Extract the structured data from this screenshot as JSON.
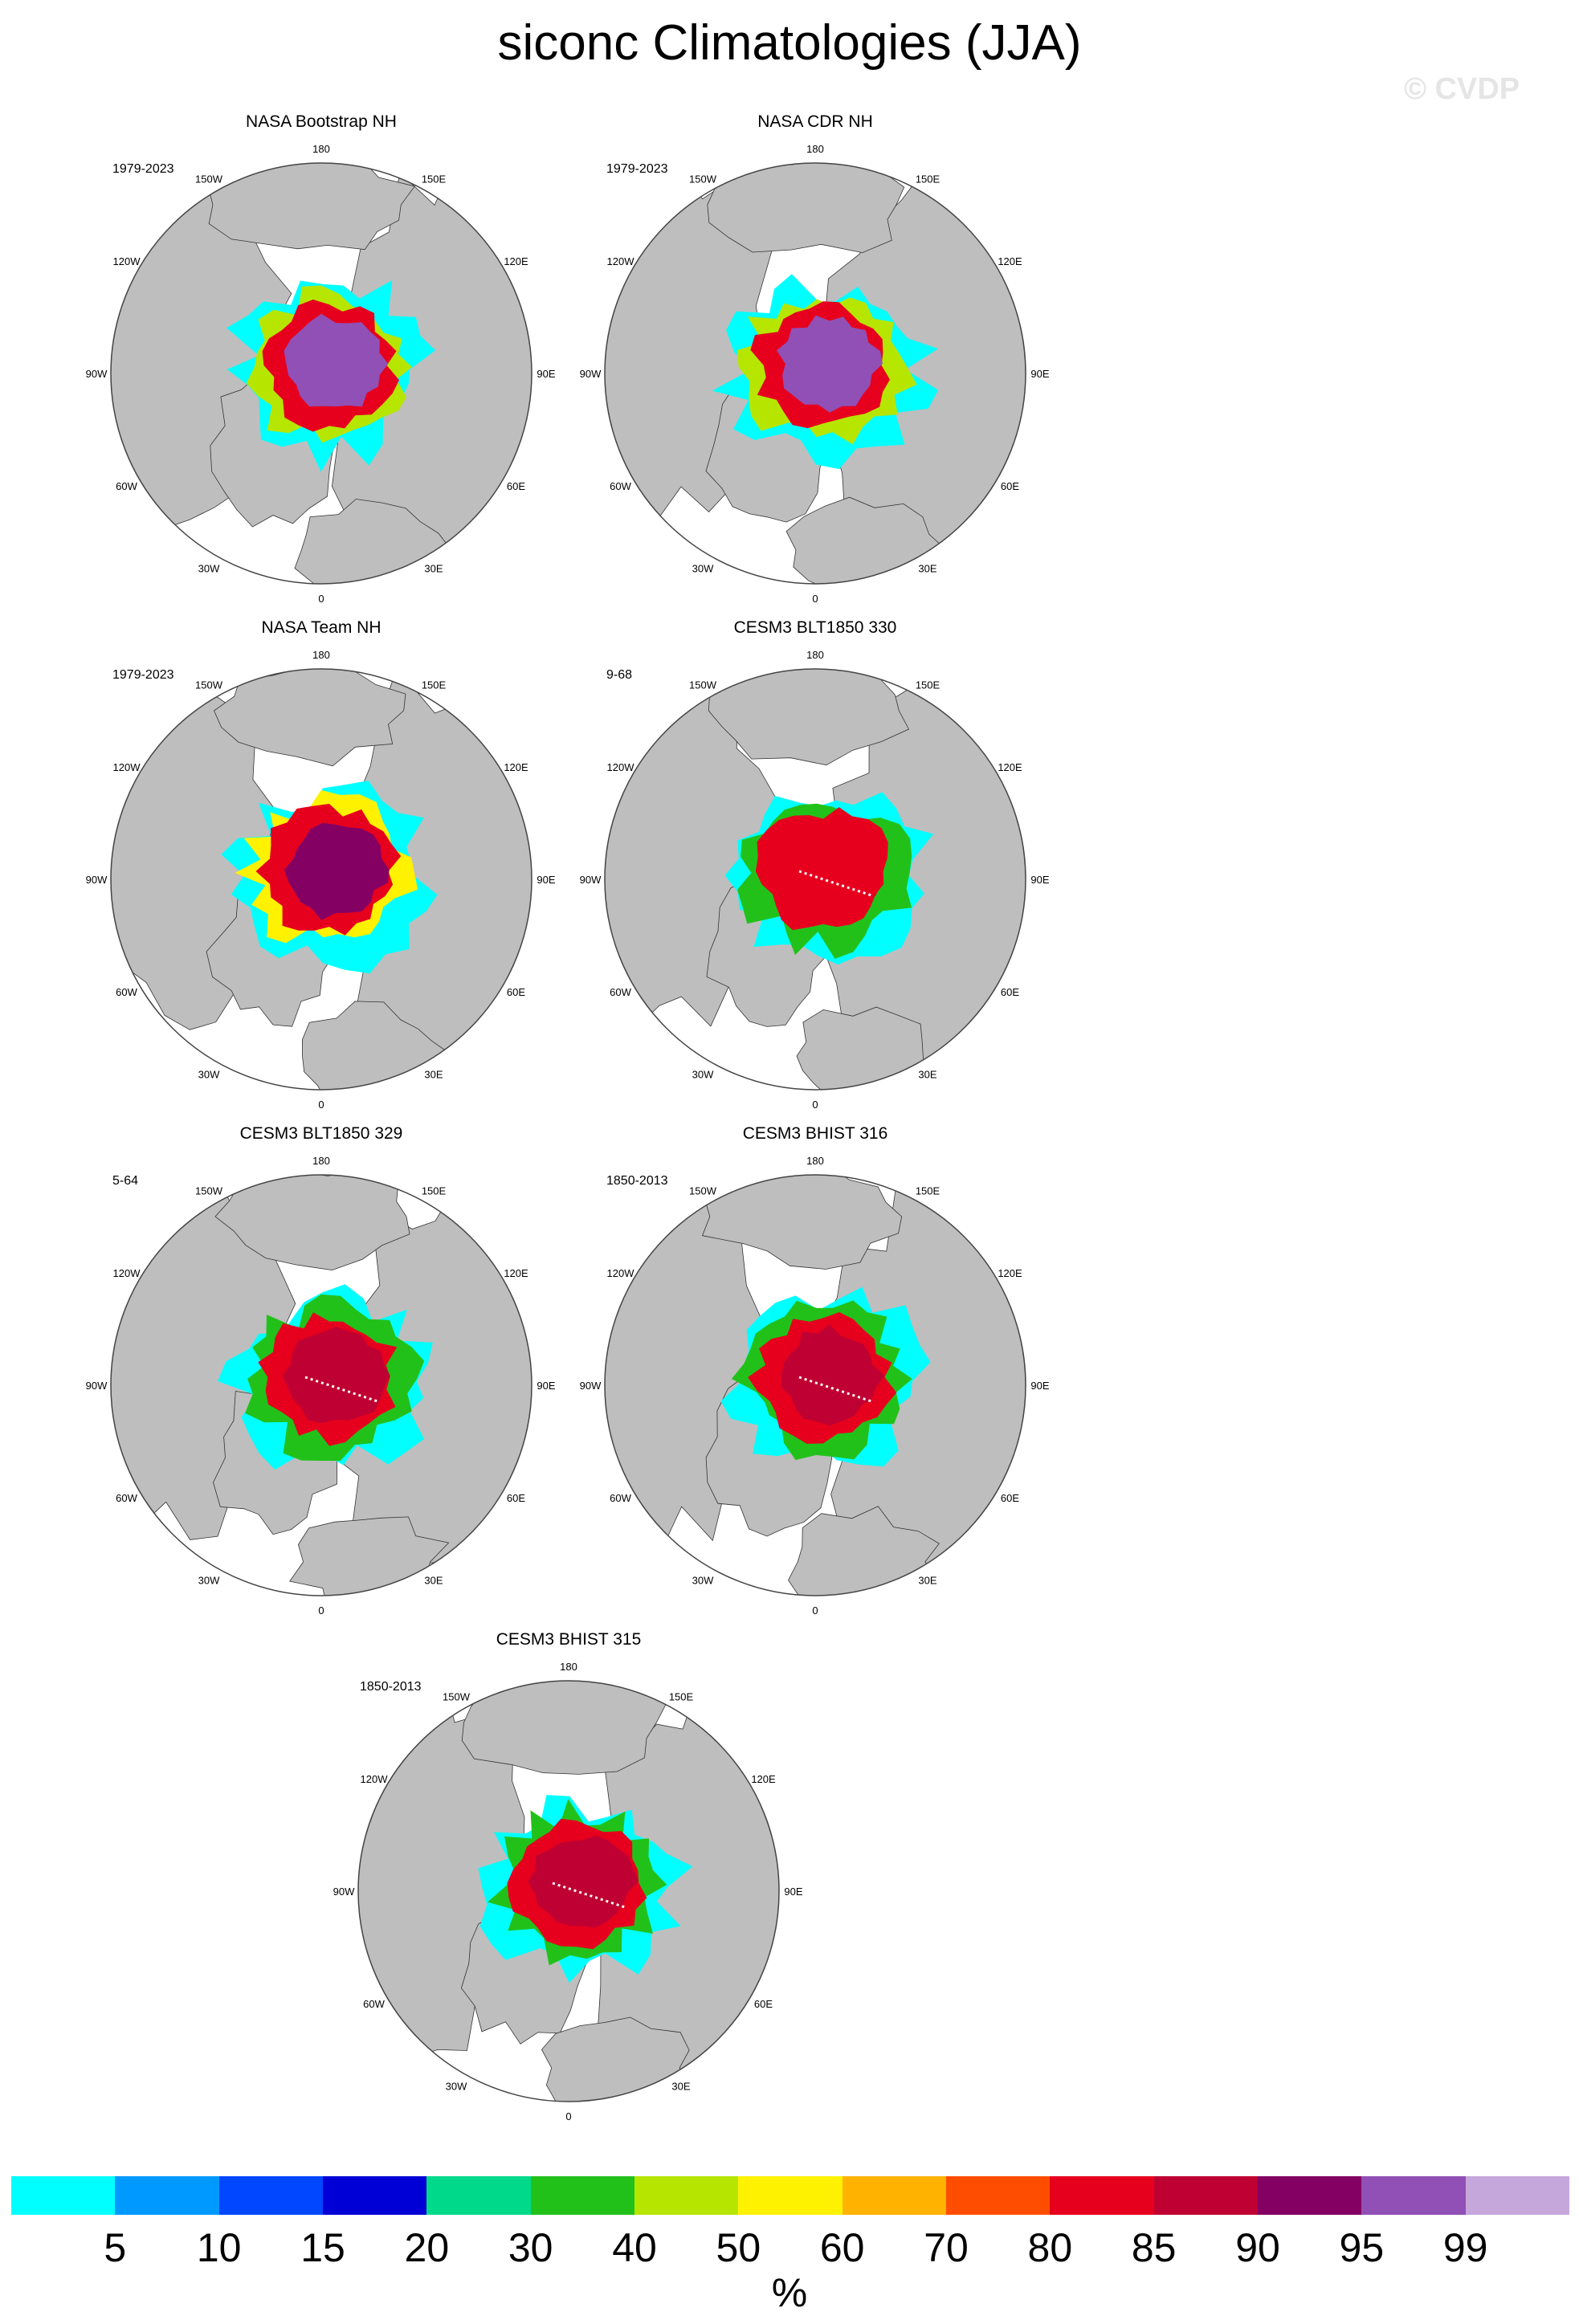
{
  "title": "siconc Climatologies (JJA)",
  "watermark": "© CVDP",
  "units": "%",
  "colors": {
    "land": "#bebebe",
    "ocean": "#ffffff",
    "grid": "#555555",
    "levels": [
      "#00ffff",
      "#0099ff",
      "#0047ff",
      "#0000d6",
      "#00d98a",
      "#22c11a",
      "#b6e600",
      "#fff200",
      "#ffb300",
      "#ff4d00",
      "#e6001e",
      "#bf0032",
      "#840062",
      "#9150b6",
      "#c6a7dc"
    ]
  },
  "colorbar_labels": [
    "5",
    "10",
    "15",
    "20",
    "30",
    "40",
    "50",
    "60",
    "70",
    "80",
    "85",
    "90",
    "95",
    "99"
  ],
  "lon_labels": [
    "180",
    "150E",
    "120E",
    "90E",
    "60E",
    "30E",
    "0",
    "30W",
    "60W",
    "90W",
    "120W",
    "150W"
  ],
  "panels": [
    {
      "title": "NASA Bootstrap NH",
      "period": "1979-2023",
      "core_level": 13,
      "inner_level": 10,
      "edge_level": 6,
      "has_transect": false
    },
    {
      "title": "NASA CDR NH",
      "period": "1979-2023",
      "core_level": 13,
      "inner_level": 10,
      "edge_level": 6,
      "has_transect": false
    },
    {
      "title": "NASA Team NH",
      "period": "1979-2023",
      "core_level": 12,
      "inner_level": 10,
      "edge_level": 7,
      "has_transect": false
    },
    {
      "title": "CESM3 BLT1850 330",
      "period": "9-68",
      "core_level": 10,
      "inner_level": 10,
      "edge_level": 5,
      "has_transect": true
    },
    {
      "title": "CESM3 BLT1850 329",
      "period": "5-64",
      "core_level": 11,
      "inner_level": 10,
      "edge_level": 5,
      "has_transect": true
    },
    {
      "title": "CESM3 BHIST 316",
      "period": "1850-2013",
      "core_level": 11,
      "inner_level": 10,
      "edge_level": 5,
      "has_transect": true
    },
    {
      "title": "CESM3 BHIST 315",
      "period": "1850-2013",
      "core_level": 11,
      "inner_level": 10,
      "edge_level": 5,
      "has_transect": true
    }
  ]
}
